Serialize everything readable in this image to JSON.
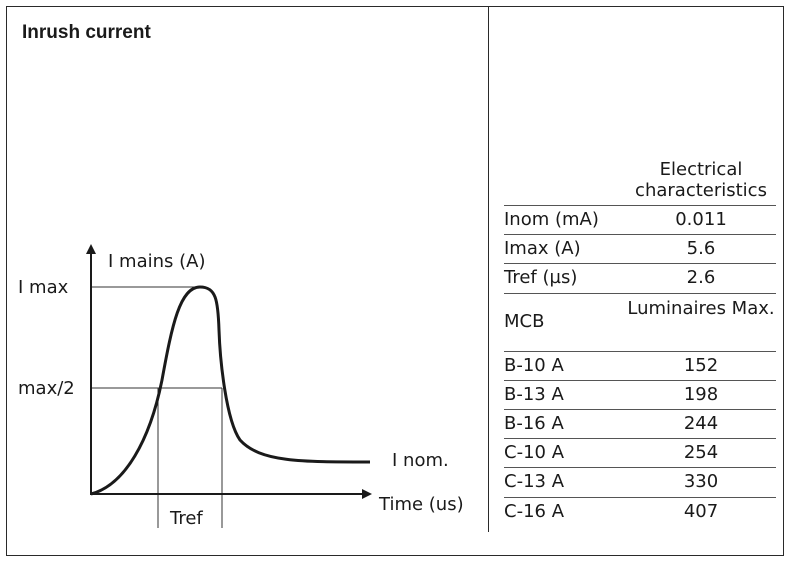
{
  "title": "Inrush current",
  "diagram": {
    "y_axis_label": "I mains (A)",
    "x_axis_label": "Time (us)",
    "imax_label": "I max",
    "half_label": "max/2",
    "inom_label": "I nom.",
    "tref_label": "Tref"
  },
  "table": {
    "header": "Electrical characteristics",
    "rows": [
      {
        "label": "Inom (mA)",
        "value": "0.011"
      },
      {
        "label": "Imax (A)",
        "value": "5.6"
      },
      {
        "label": "Tref (µs)",
        "value": "2.6"
      }
    ],
    "mcb_label": "MCB",
    "mcb_header": "Luminaires Max.",
    "mcb_rows": [
      {
        "label": "B-10 A",
        "value": "152"
      },
      {
        "label": "B-13 A",
        "value": "198"
      },
      {
        "label": "B-16 A",
        "value": "244"
      },
      {
        "label": "C-10 A",
        "value": "254"
      },
      {
        "label": "C-13 A",
        "value": "330"
      },
      {
        "label": "C-16 A",
        "value": "407"
      }
    ]
  }
}
